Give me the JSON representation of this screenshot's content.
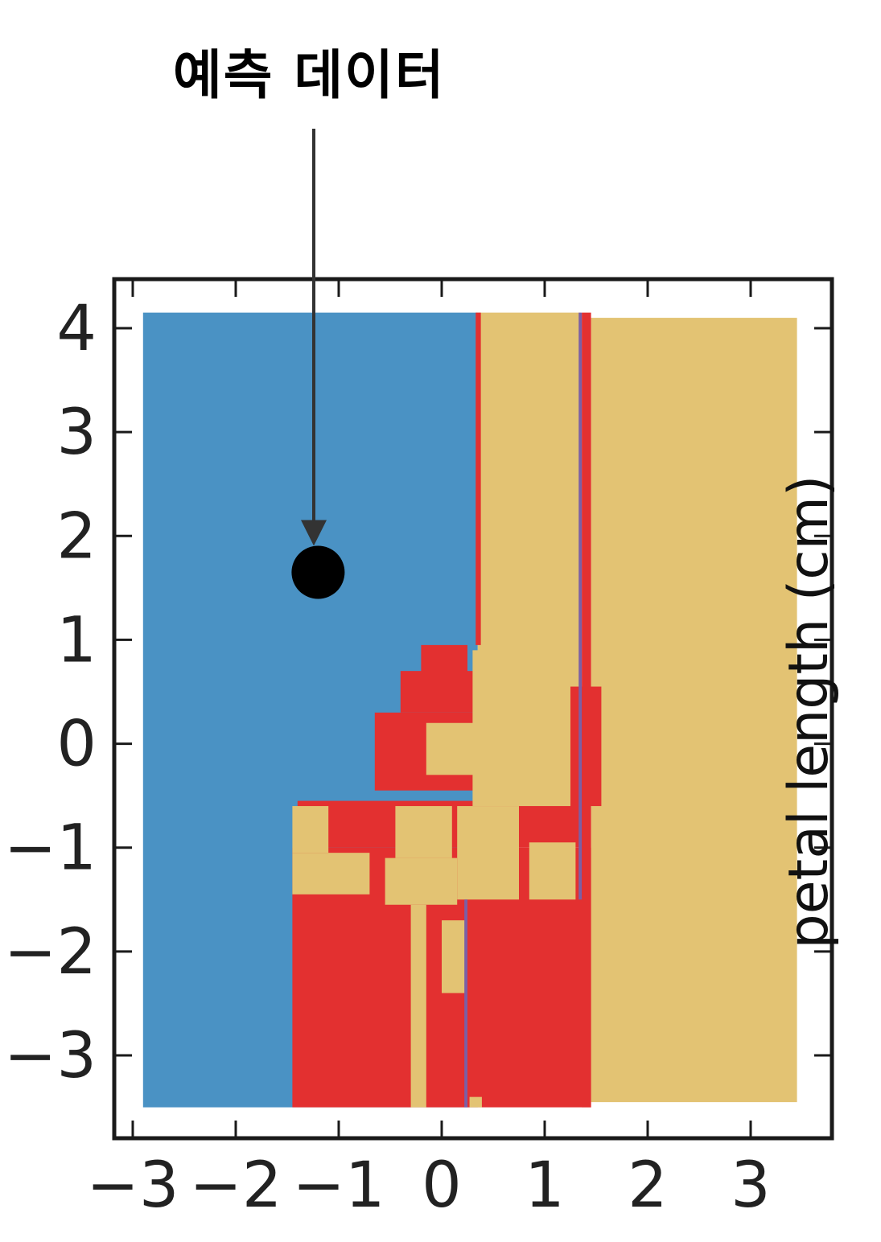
{
  "annotation": {
    "label": "예측 데이터"
  },
  "colors": {
    "class_a": "#4a92c4",
    "class_b": "#e33030",
    "class_c": "#e3c373",
    "divider": "#7b5fa5",
    "point": "#000000",
    "frame": "#1a1a1a",
    "arrow": "#333333"
  },
  "chart_data": {
    "type": "heatmap",
    "title": "",
    "xlabel": "",
    "ylabel": "petal length (cm)",
    "xlim": [
      -3.2,
      3.8
    ],
    "ylim": [
      -3.8,
      4.5
    ],
    "xticks": [
      "−3",
      "−2",
      "−1",
      "0",
      "1",
      "2",
      "3"
    ],
    "yticks": [
      "4",
      "3",
      "2",
      "1",
      "0",
      "−1",
      "−2",
      "−3"
    ],
    "xtick_values": [
      -3,
      -2,
      -1,
      0,
      1,
      2,
      3
    ],
    "ytick_values": [
      4,
      3,
      2,
      1,
      0,
      -1,
      -2,
      -3
    ],
    "legend": "none",
    "grid": false,
    "regions": [
      {
        "cls": "class_a",
        "x0": -2.9,
        "x1": 0.35,
        "y0": -3.5,
        "y1": 4.15
      },
      {
        "cls": "class_c",
        "x0": 0.35,
        "x1": 1.35,
        "y0": 0.25,
        "y1": 4.15
      },
      {
        "cls": "class_c",
        "x0": 1.45,
        "x1": 3.45,
        "y0": -3.45,
        "y1": 4.1
      },
      {
        "cls": "class_b",
        "x0": 0.33,
        "x1": 0.38,
        "y0": 0.95,
        "y1": 4.15
      },
      {
        "cls": "class_b",
        "x0": 1.36,
        "x1": 1.45,
        "y0": -3.5,
        "y1": 4.15
      },
      {
        "cls": "class_b",
        "x0": -0.2,
        "x1": 0.25,
        "y0": 0.5,
        "y1": 0.95
      },
      {
        "cls": "class_b",
        "x0": -0.4,
        "x1": 0.4,
        "y0": 0.3,
        "y1": 0.7
      },
      {
        "cls": "class_b",
        "x0": -0.65,
        "x1": 0.38,
        "y0": -0.45,
        "y1": 0.3
      },
      {
        "cls": "class_b",
        "x0": -1.4,
        "x1": 1.38,
        "y0": -1.0,
        "y1": -0.55
      },
      {
        "cls": "class_b",
        "x0": -1.45,
        "x1": 1.45,
        "y0": -3.5,
        "y1": -1.0
      },
      {
        "cls": "class_b",
        "x0": 1.25,
        "x1": 1.55,
        "y0": -0.6,
        "y1": 0.55
      },
      {
        "cls": "class_c",
        "x0": -0.15,
        "x1": 1.25,
        "y0": -0.3,
        "y1": 0.2
      },
      {
        "cls": "class_c",
        "x0": 0.3,
        "x1": 1.25,
        "y0": -0.6,
        "y1": 0.9
      },
      {
        "cls": "class_c",
        "x0": -0.45,
        "x1": 0.1,
        "y0": -1.1,
        "y1": -0.6
      },
      {
        "cls": "class_c",
        "x0": 0.15,
        "x1": 0.75,
        "y0": -1.5,
        "y1": -0.6
      },
      {
        "cls": "class_c",
        "x0": -1.45,
        "x1": -0.7,
        "y0": -1.45,
        "y1": -1.05
      },
      {
        "cls": "class_c",
        "x0": -1.45,
        "x1": -1.1,
        "y0": -1.05,
        "y1": -0.6
      },
      {
        "cls": "class_c",
        "x0": -0.55,
        "x1": 0.15,
        "y0": -1.55,
        "y1": -1.1
      },
      {
        "cls": "class_c",
        "x0": 0.85,
        "x1": 1.3,
        "y0": -1.5,
        "y1": -0.95
      },
      {
        "cls": "class_c",
        "x0": -0.3,
        "x1": -0.15,
        "y0": -3.5,
        "y1": -1.55
      },
      {
        "cls": "class_c",
        "x0": 0.0,
        "x1": 0.25,
        "y0": -2.4,
        "y1": -1.7
      },
      {
        "cls": "class_c",
        "x0": 0.27,
        "x1": 0.39,
        "y0": -3.5,
        "y1": -3.4
      },
      {
        "cls": "divider",
        "x0": 0.22,
        "x1": 0.25,
        "y0": -3.5,
        "y1": -1.5
      },
      {
        "cls": "divider",
        "x0": 1.33,
        "x1": 1.36,
        "y0": -1.5,
        "y1": 4.15
      }
    ],
    "point": {
      "x": -1.2,
      "y": 1.65
    }
  }
}
